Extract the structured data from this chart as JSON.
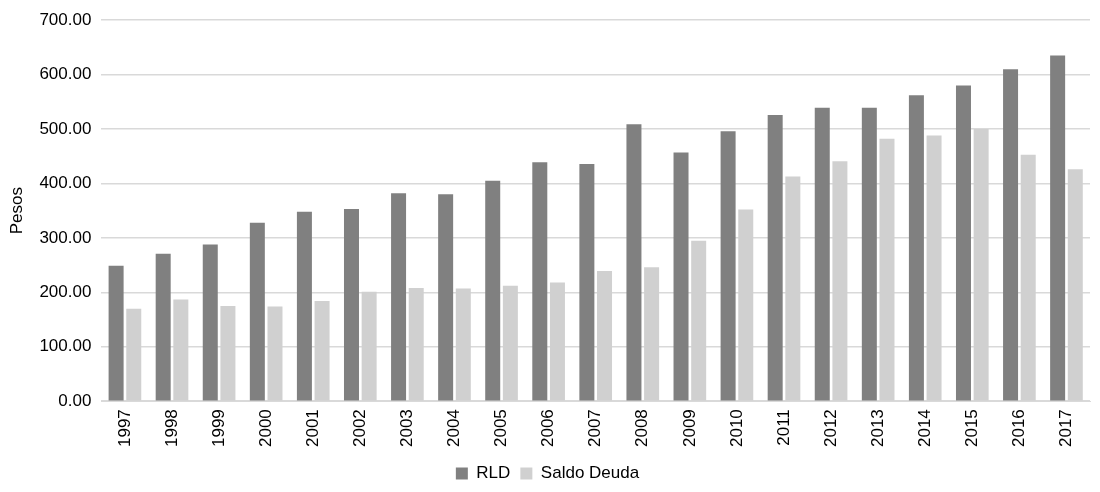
{
  "chart_data": {
    "type": "bar",
    "ylabel": "Pesos",
    "categories": [
      "1997",
      "1998",
      "1999",
      "2000",
      "2001",
      "2002",
      "2003",
      "2004",
      "2005",
      "2006",
      "2007",
      "2008",
      "2009",
      "2010",
      "2011",
      "2012",
      "2013",
      "2014",
      "2015",
      "2016",
      "2017"
    ],
    "series": [
      {
        "name": "RLD",
        "color": "#808080",
        "values": [
          249,
          271,
          288,
          328,
          348,
          353,
          382,
          380,
          405,
          439,
          436,
          509,
          457,
          496,
          526,
          539,
          539,
          562,
          580,
          610,
          635
        ]
      },
      {
        "name": "Saldo Deuda",
        "color": "#d0d0d0",
        "values": [
          170,
          187,
          175,
          174,
          184,
          201,
          208,
          207,
          212,
          218,
          239,
          246,
          295,
          352,
          413,
          441,
          482,
          488,
          500,
          453,
          426
        ]
      }
    ],
    "ylim": [
      0,
      700
    ],
    "yticks": [
      {
        "value": 0,
        "label": "0.00"
      },
      {
        "value": 100,
        "label": "100.00"
      },
      {
        "value": 200,
        "label": "200.00"
      },
      {
        "value": 300,
        "label": "300.00"
      },
      {
        "value": 400,
        "label": "400.00"
      },
      {
        "value": 500,
        "label": "500.00"
      },
      {
        "value": 600,
        "label": "600.00"
      },
      {
        "value": 700,
        "label": "700.00"
      }
    ],
    "grid": "y",
    "legend": "bottom"
  }
}
